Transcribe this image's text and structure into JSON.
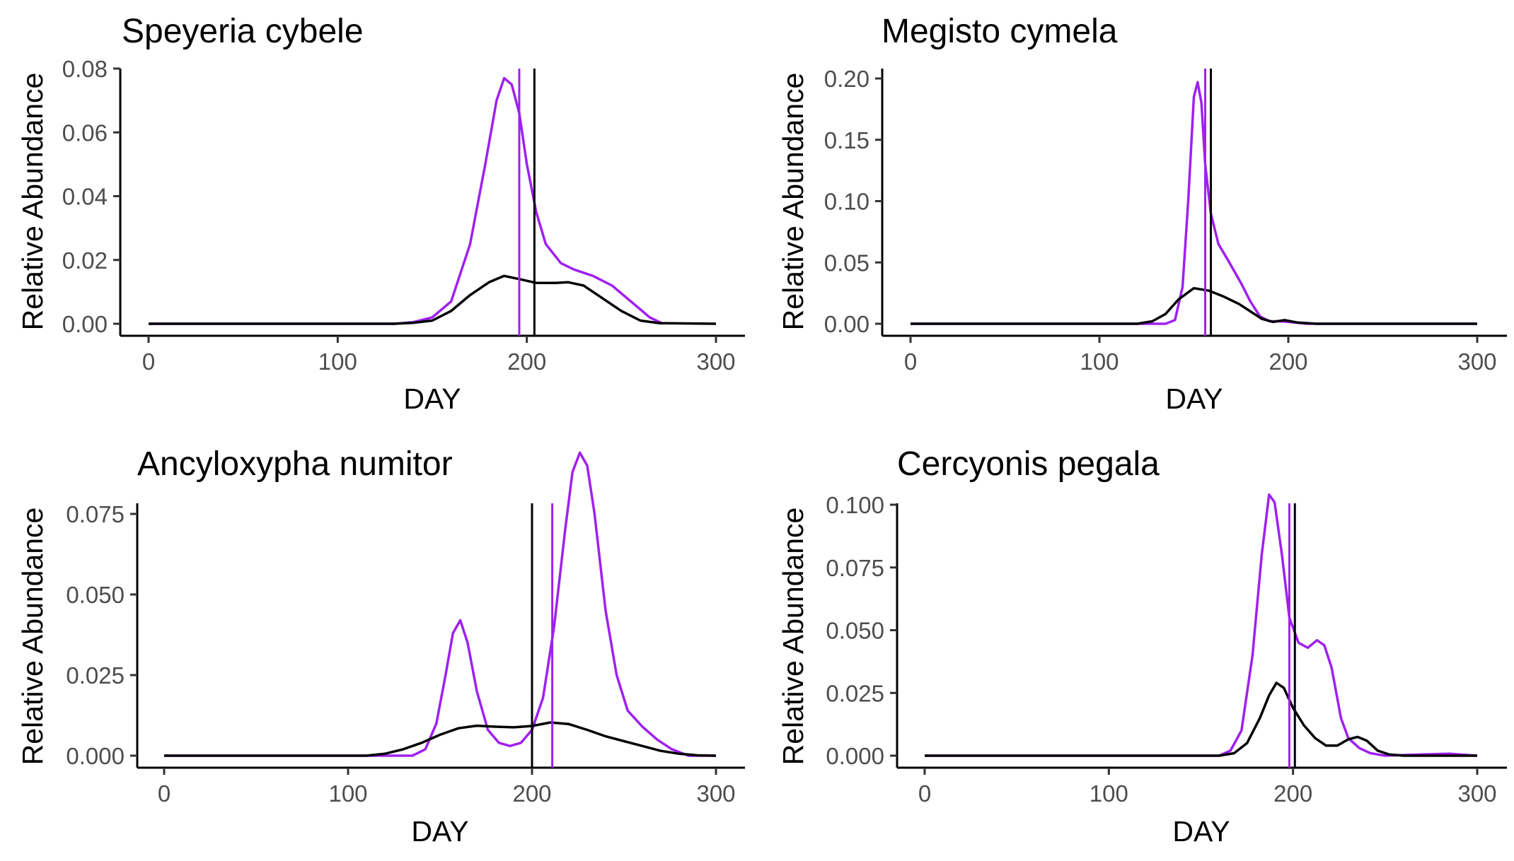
{
  "chart_data": [
    {
      "type": "line",
      "title": "Speyeria cybele",
      "xlabel": "DAY",
      "ylabel": "Relative Abundance",
      "xlim": [
        0,
        300
      ],
      "ylim": [
        0,
        0.08
      ],
      "xticks": [
        "0",
        "100",
        "200",
        "300"
      ],
      "yticks": [
        "0.00",
        "0.02",
        "0.04",
        "0.06",
        "0.08"
      ],
      "ytick_values": [
        0,
        0.02,
        0.04,
        0.06,
        0.08
      ],
      "series": [
        {
          "color": "#a020f0",
          "points": [
            [
              0,
              0
            ],
            [
              130,
              0
            ],
            [
              140,
              0.0005
            ],
            [
              150,
              0.002
            ],
            [
              160,
              0.007
            ],
            [
              170,
              0.025
            ],
            [
              178,
              0.05
            ],
            [
              184,
              0.07
            ],
            [
              188,
              0.077
            ],
            [
              192,
              0.075
            ],
            [
              196,
              0.066
            ],
            [
              200,
              0.05
            ],
            [
              205,
              0.035
            ],
            [
              210,
              0.025
            ],
            [
              218,
              0.019
            ],
            [
              225,
              0.017
            ],
            [
              235,
              0.015
            ],
            [
              245,
              0.012
            ],
            [
              255,
              0.007
            ],
            [
              265,
              0.002
            ],
            [
              272,
              0
            ]
          ]
        },
        {
          "color": "#000000",
          "points": [
            [
              0,
              0
            ],
            [
              130,
              0
            ],
            [
              140,
              0.0003
            ],
            [
              150,
              0.001
            ],
            [
              160,
              0.004
            ],
            [
              170,
              0.009
            ],
            [
              180,
              0.013
            ],
            [
              188,
              0.015
            ],
            [
              196,
              0.014
            ],
            [
              205,
              0.0128
            ],
            [
              215,
              0.0128
            ],
            [
              222,
              0.013
            ],
            [
              230,
              0.012
            ],
            [
              240,
              0.008
            ],
            [
              250,
              0.004
            ],
            [
              260,
              0.001
            ],
            [
              270,
              0.0002
            ],
            [
              300,
              0
            ]
          ]
        }
      ],
      "vlines": [
        {
          "x": 196,
          "color": "#a020f0"
        },
        {
          "x": 204,
          "color": "#000000"
        }
      ]
    },
    {
      "type": "line",
      "title": "Megisto cymela",
      "xlabel": "DAY",
      "ylabel": "Relative Abundance",
      "xlim": [
        0,
        300
      ],
      "ylim": [
        0,
        0.2
      ],
      "xticks": [
        "0",
        "100",
        "200",
        "300"
      ],
      "yticks": [
        "0.00",
        "0.05",
        "0.10",
        "0.15",
        "0.20"
      ],
      "ytick_values": [
        0,
        0.05,
        0.1,
        0.15,
        0.2
      ],
      "series": [
        {
          "color": "#a020f0",
          "points": [
            [
              0,
              0
            ],
            [
              135,
              0
            ],
            [
              140,
              0.003
            ],
            [
              144,
              0.03
            ],
            [
              147,
              0.1
            ],
            [
              150,
              0.185
            ],
            [
              152,
              0.197
            ],
            [
              154,
              0.18
            ],
            [
              156,
              0.13
            ],
            [
              159,
              0.09
            ],
            [
              163,
              0.065
            ],
            [
              168,
              0.052
            ],
            [
              175,
              0.033
            ],
            [
              180,
              0.018
            ],
            [
              185,
              0.006
            ],
            [
              190,
              0.002
            ],
            [
              195,
              0.002
            ],
            [
              200,
              0.0015
            ],
            [
              210,
              0
            ],
            [
              300,
              0
            ]
          ]
        },
        {
          "color": "#000000",
          "points": [
            [
              0,
              0
            ],
            [
              120,
              0
            ],
            [
              128,
              0.002
            ],
            [
              135,
              0.008
            ],
            [
              142,
              0.02
            ],
            [
              150,
              0.029
            ],
            [
              158,
              0.027
            ],
            [
              166,
              0.022
            ],
            [
              174,
              0.016
            ],
            [
              180,
              0.01
            ],
            [
              186,
              0.004
            ],
            [
              192,
              0.0015
            ],
            [
              198,
              0.003
            ],
            [
              205,
              0.001
            ],
            [
              215,
              0
            ],
            [
              300,
              0
            ]
          ]
        }
      ],
      "vlines": [
        {
          "x": 156,
          "color": "#a020f0"
        },
        {
          "x": 159,
          "color": "#000000"
        }
      ]
    },
    {
      "type": "line",
      "title": "Ancyloxypha numitor",
      "xlabel": "DAY",
      "ylabel": "Relative Abundance",
      "xlim": [
        0,
        300
      ],
      "ylim": [
        0,
        0.097
      ],
      "xticks": [
        "0",
        "100",
        "200",
        "300"
      ],
      "yticks": [
        "0.000",
        "0.025",
        "0.050",
        "0.075"
      ],
      "ytick_values": [
        0,
        0.025,
        0.05,
        0.075
      ],
      "series": [
        {
          "color": "#a020f0",
          "points": [
            [
              0,
              0
            ],
            [
              135,
              0
            ],
            [
              142,
              0.002
            ],
            [
              148,
              0.01
            ],
            [
              153,
              0.025
            ],
            [
              157,
              0.038
            ],
            [
              161,
              0.042
            ],
            [
              165,
              0.035
            ],
            [
              170,
              0.02
            ],
            [
              176,
              0.008
            ],
            [
              182,
              0.004
            ],
            [
              188,
              0.003
            ],
            [
              194,
              0.004
            ],
            [
              200,
              0.008
            ],
            [
              206,
              0.018
            ],
            [
              212,
              0.04
            ],
            [
              218,
              0.07
            ],
            [
              222,
              0.088
            ],
            [
              226,
              0.094
            ],
            [
              230,
              0.09
            ],
            [
              234,
              0.075
            ],
            [
              240,
              0.045
            ],
            [
              246,
              0.025
            ],
            [
              252,
              0.014
            ],
            [
              260,
              0.009
            ],
            [
              268,
              0.005
            ],
            [
              276,
              0.002
            ],
            [
              285,
              0
            ],
            [
              300,
              0
            ]
          ]
        },
        {
          "color": "#000000",
          "points": [
            [
              0,
              0
            ],
            [
              110,
              0
            ],
            [
              120,
              0.0006
            ],
            [
              130,
              0.002
            ],
            [
              140,
              0.004
            ],
            [
              150,
              0.0065
            ],
            [
              160,
              0.0085
            ],
            [
              170,
              0.0093
            ],
            [
              180,
              0.009
            ],
            [
              190,
              0.0088
            ],
            [
              200,
              0.0092
            ],
            [
              210,
              0.0103
            ],
            [
              220,
              0.0098
            ],
            [
              230,
              0.008
            ],
            [
              240,
              0.006
            ],
            [
              250,
              0.0045
            ],
            [
              260,
              0.003
            ],
            [
              270,
              0.0015
            ],
            [
              280,
              0.0006
            ],
            [
              290,
              0.0001
            ],
            [
              300,
              0
            ]
          ]
        }
      ],
      "vlines": [
        {
          "x": 200,
          "color": "#000000"
        },
        {
          "x": 211,
          "color": "#a020f0"
        }
      ]
    },
    {
      "type": "line",
      "title": "Cercyonis pegala",
      "xlabel": "DAY",
      "ylabel": "Relative Abundance",
      "xlim": [
        0,
        300
      ],
      "ylim": [
        0,
        0.11
      ],
      "xticks": [
        "0",
        "100",
        "200",
        "300"
      ],
      "yticks": [
        "0.000",
        "0.025",
        "0.050",
        "0.075",
        "0.100"
      ],
      "ytick_values": [
        0,
        0.025,
        0.05,
        0.075,
        0.1
      ],
      "series": [
        {
          "color": "#a020f0",
          "points": [
            [
              0,
              0
            ],
            [
              160,
              0
            ],
            [
              166,
              0.002
            ],
            [
              172,
              0.01
            ],
            [
              178,
              0.04
            ],
            [
              183,
              0.08
            ],
            [
              187,
              0.104
            ],
            [
              190,
              0.101
            ],
            [
              194,
              0.08
            ],
            [
              198,
              0.055
            ],
            [
              203,
              0.045
            ],
            [
              208,
              0.043
            ],
            [
              213,
              0.046
            ],
            [
              217,
              0.044
            ],
            [
              221,
              0.035
            ],
            [
              226,
              0.015
            ],
            [
              230,
              0.007
            ],
            [
              236,
              0.003
            ],
            [
              242,
              0.001
            ],
            [
              250,
              0
            ],
            [
              270,
              0.0005
            ],
            [
              285,
              0.0008
            ],
            [
              300,
              0
            ]
          ]
        },
        {
          "color": "#000000",
          "points": [
            [
              0,
              0
            ],
            [
              160,
              0
            ],
            [
              168,
              0.001
            ],
            [
              175,
              0.005
            ],
            [
              182,
              0.015
            ],
            [
              187,
              0.024
            ],
            [
              191,
              0.029
            ],
            [
              195,
              0.027
            ],
            [
              200,
              0.019
            ],
            [
              206,
              0.012
            ],
            [
              212,
              0.007
            ],
            [
              218,
              0.004
            ],
            [
              224,
              0.004
            ],
            [
              230,
              0.0065
            ],
            [
              235,
              0.0075
            ],
            [
              240,
              0.006
            ],
            [
              246,
              0.002
            ],
            [
              252,
              0.0005
            ],
            [
              260,
              0
            ],
            [
              300,
              0
            ]
          ]
        }
      ],
      "vlines": [
        {
          "x": 198,
          "color": "#a020f0"
        },
        {
          "x": 201,
          "color": "#000000"
        }
      ]
    }
  ]
}
